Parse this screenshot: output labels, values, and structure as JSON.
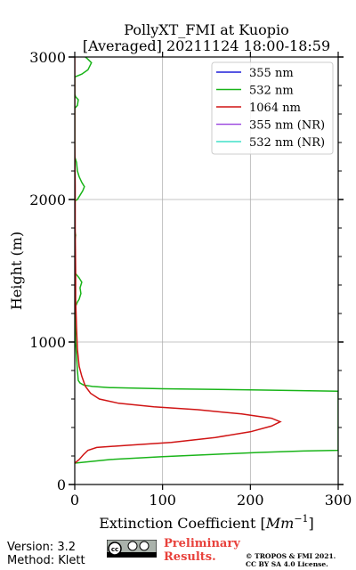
{
  "chart_data": {
    "type": "line",
    "title": "PollyXT_FMI at Kuopio",
    "subtitle": "[Averaged] 20211124 18:00-18:59",
    "xlabel": "Extinction Coefficient [Mm⁻¹]",
    "xlabel_main": "Extinction Coefficient [",
    "xlabel_unit": "Mm",
    "xlabel_sup": "−1",
    "xlabel_end": "]",
    "ylabel": "Height (m)",
    "xlim": [
      0,
      300
    ],
    "ylim": [
      0,
      3000
    ],
    "x_ticks": [
      "0",
      "100",
      "200",
      "300"
    ],
    "y_ticks": [
      "0",
      "1000",
      "2000",
      "3000"
    ],
    "x_tick_values": [
      0,
      100,
      200,
      300
    ],
    "y_tick_values": [
      0,
      1000,
      2000,
      3000
    ],
    "grid": true,
    "legend_position": "top-right",
    "series": [
      {
        "name": "355 nm",
        "color": "#1f1fd8",
        "points": []
      },
      {
        "name": "532 nm",
        "color": "#19b419",
        "points": [
          [
            0,
            150
          ],
          [
            40,
            175
          ],
          [
            100,
            195
          ],
          [
            160,
            212
          ],
          [
            210,
            225
          ],
          [
            260,
            235
          ],
          [
            300,
            240
          ],
          [
            300,
            655
          ],
          [
            200,
            664
          ],
          [
            100,
            672
          ],
          [
            40,
            680
          ],
          [
            20,
            688
          ],
          [
            10,
            698
          ],
          [
            6,
            712
          ],
          [
            4,
            730
          ],
          [
            3,
            800
          ],
          [
            2,
            900
          ],
          [
            1,
            1000
          ],
          [
            0.5,
            1150
          ],
          [
            1,
            1250
          ],
          [
            3,
            1280
          ],
          [
            5,
            1300
          ],
          [
            7,
            1340
          ],
          [
            6,
            1380
          ],
          [
            8,
            1420
          ],
          [
            5,
            1450
          ],
          [
            1,
            1480
          ],
          [
            0,
            1500
          ],
          [
            0,
            1700
          ],
          [
            1,
            1750
          ],
          [
            0,
            1780
          ],
          [
            0,
            1990
          ],
          [
            3,
            2000
          ],
          [
            6,
            2030
          ],
          [
            9,
            2060
          ],
          [
            11,
            2090
          ],
          [
            8,
            2120
          ],
          [
            5,
            2160
          ],
          [
            3,
            2200
          ],
          [
            2,
            2260
          ],
          [
            0,
            2300
          ],
          [
            0,
            2640
          ],
          [
            3,
            2660
          ],
          [
            4,
            2700
          ],
          [
            1,
            2720
          ],
          [
            0,
            2740
          ],
          [
            0,
            2860
          ],
          [
            8,
            2880
          ],
          [
            15,
            2910
          ],
          [
            19,
            2960
          ],
          [
            14,
            2990
          ],
          [
            12,
            3000
          ]
        ]
      },
      {
        "name": "1064 nm",
        "color": "#d01414",
        "points": [
          [
            0,
            150
          ],
          [
            5,
            175
          ],
          [
            10,
            210
          ],
          [
            15,
            240
          ],
          [
            25,
            260
          ],
          [
            60,
            275
          ],
          [
            110,
            295
          ],
          [
            160,
            330
          ],
          [
            200,
            370
          ],
          [
            224,
            410
          ],
          [
            234,
            440
          ],
          [
            224,
            465
          ],
          [
            190,
            495
          ],
          [
            140,
            525
          ],
          [
            90,
            545
          ],
          [
            50,
            570
          ],
          [
            28,
            600
          ],
          [
            18,
            640
          ],
          [
            12,
            690
          ],
          [
            8,
            760
          ],
          [
            5,
            830
          ],
          [
            3,
            950
          ],
          [
            2,
            1100
          ],
          [
            1,
            1300
          ],
          [
            1,
            1500
          ],
          [
            0.5,
            1800
          ],
          [
            0.5,
            2100
          ],
          [
            0,
            2400
          ],
          [
            0,
            2700
          ],
          [
            0,
            3000
          ]
        ]
      },
      {
        "name": "355 nm (NR)",
        "color": "#a050e0",
        "points": []
      },
      {
        "name": "532 nm (NR)",
        "color": "#40e0c8",
        "points": []
      }
    ]
  },
  "footer": {
    "version": "Version: 3.2",
    "method": "Method: Klett",
    "preliminary_line1": "Preliminary",
    "preliminary_line2": "Results.",
    "copyright_line1": "© TROPOS & FMI 2021.",
    "copyright_line2": "CC BY SA 4.0 License.",
    "license_badge": "cc-by-sa-badge-icon"
  }
}
